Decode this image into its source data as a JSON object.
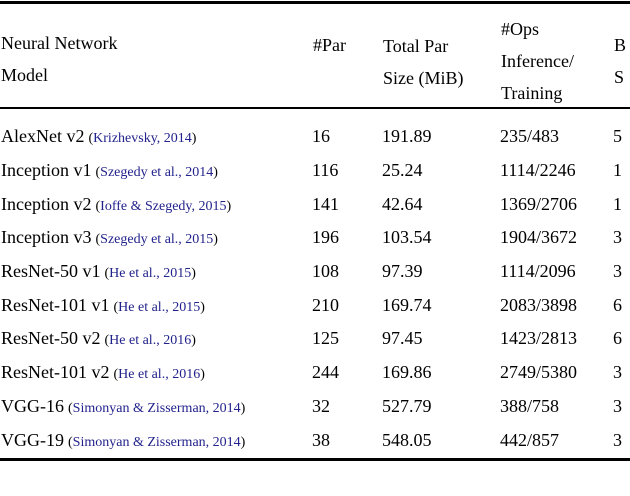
{
  "colors": {
    "background": "#ffffff",
    "text": "#000000",
    "rule": "#000000",
    "citation_link": "#22228c"
  },
  "table": {
    "punct": {
      "open": "(",
      "close": ")"
    },
    "header": {
      "model": {
        "line1": "Neural Network",
        "line2": "Model"
      },
      "par": "#Par",
      "size": {
        "line1": "Total Par",
        "line2": "Size (MiB)"
      },
      "ops": {
        "line1": "#Ops",
        "line2": "Inference/",
        "line3": "Training"
      },
      "batch": {
        "line1": "B",
        "line2": "S"
      }
    },
    "rows": [
      {
        "model": "AlexNet v2",
        "cite": "Krizhevsky, 2014",
        "par": "16",
        "size": "191.89",
        "ops": "235/483",
        "batch": "5"
      },
      {
        "model": "Inception v1",
        "cite": "Szegedy et al., 2014",
        "par": "116",
        "size": "25.24",
        "ops": "1114/2246",
        "batch": "1"
      },
      {
        "model": "Inception v2",
        "cite": "Ioffe & Szegedy, 2015",
        "par": "141",
        "size": "42.64",
        "ops": "1369/2706",
        "batch": "1"
      },
      {
        "model": "Inception v3",
        "cite": "Szegedy et al., 2015",
        "par": "196",
        "size": "103.54",
        "ops": "1904/3672",
        "batch": "3"
      },
      {
        "model": "ResNet-50 v1",
        "cite": "He et al., 2015",
        "par": "108",
        "size": "97.39",
        "ops": "1114/2096",
        "batch": "3"
      },
      {
        "model": "ResNet-101 v1",
        "cite": "He et al., 2015",
        "par": "210",
        "size": "169.74",
        "ops": "2083/3898",
        "batch": "6"
      },
      {
        "model": "ResNet-50 v2",
        "cite": "He et al., 2016",
        "par": "125",
        "size": "97.45",
        "ops": "1423/2813",
        "batch": "6"
      },
      {
        "model": "ResNet-101 v2",
        "cite": "He et al., 2016",
        "par": "244",
        "size": "169.86",
        "ops": "2749/5380",
        "batch": "3"
      },
      {
        "model": "VGG-16",
        "cite": "Simonyan & Zisserman, 2014",
        "par": "32",
        "size": "527.79",
        "ops": "388/758",
        "batch": "3"
      },
      {
        "model": "VGG-19",
        "cite": "Simonyan & Zisserman, 2014",
        "par": "38",
        "size": "548.05",
        "ops": "442/857",
        "batch": "3"
      }
    ]
  }
}
